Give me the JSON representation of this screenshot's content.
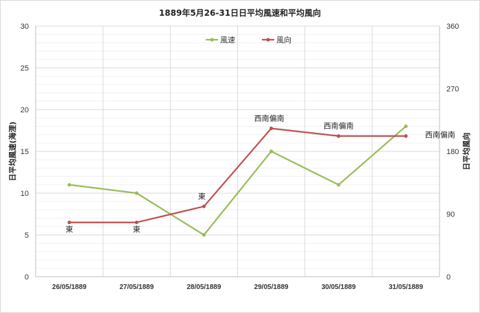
{
  "chart_data": {
    "type": "line",
    "title": "1889年5月26-31日日平均風速和平均風向",
    "categories": [
      "26/05/1889",
      "27/05/1889",
      "28/05/1889",
      "29/05/1889",
      "30/05/1889",
      "31/05/1889"
    ],
    "ylabel_left": "日平均風速(海浬)",
    "ylabel_right": "日平均風向",
    "ylim_left": [
      0,
      30
    ],
    "yticks_left": [
      0,
      5,
      10,
      15,
      20,
      25,
      30
    ],
    "ylim_right": [
      0,
      360
    ],
    "yticks_right": [
      0,
      90,
      180,
      270,
      360
    ],
    "grid": true,
    "legend_position": "top-center",
    "series": [
      {
        "name": "風速",
        "axis": "left",
        "color": "#9bbb59",
        "values": [
          11,
          10,
          5,
          15,
          11,
          18
        ]
      },
      {
        "name": "風向",
        "axis": "right",
        "color": "#c0504d",
        "values": [
          78,
          78,
          101,
          213,
          202,
          202
        ]
      }
    ],
    "annotations": [
      "東",
      "東",
      "東",
      "西南偏南",
      "西南偏南",
      "西南偏南"
    ]
  }
}
